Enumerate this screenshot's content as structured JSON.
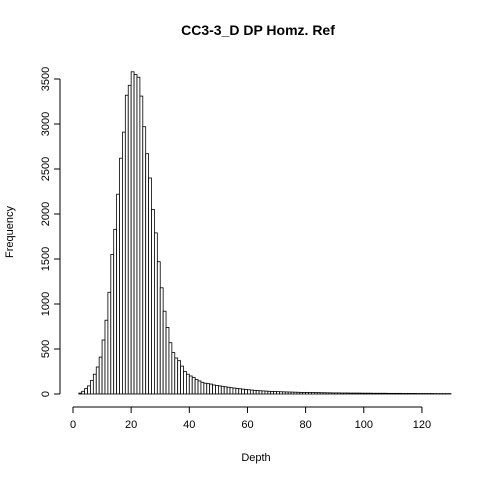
{
  "chart_data": {
    "type": "bar",
    "title": "CC3-3_D DP Homz. Ref",
    "xlabel": "Depth",
    "ylabel": "Frequency",
    "xlim": [
      0,
      130
    ],
    "ylim": [
      0,
      3600
    ],
    "x_ticks": [
      0,
      20,
      40,
      60,
      80,
      100,
      120
    ],
    "y_ticks": [
      0,
      500,
      1000,
      1500,
      2000,
      2500,
      3000,
      3500
    ],
    "bin_width": 1,
    "bin_start": 2,
    "values": [
      10,
      30,
      60,
      90,
      150,
      220,
      300,
      410,
      600,
      820,
      1130,
      1550,
      1830,
      2220,
      2620,
      2910,
      3320,
      3430,
      3580,
      3550,
      3520,
      3310,
      2970,
      2670,
      2400,
      2050,
      1790,
      1470,
      1180,
      920,
      740,
      570,
      460,
      400,
      370,
      310,
      250,
      220,
      200,
      185,
      160,
      145,
      130,
      120,
      115,
      110,
      100,
      95,
      90,
      85,
      80,
      75,
      70,
      66,
      62,
      58,
      54,
      50,
      47,
      44,
      41,
      38,
      36,
      34,
      32,
      30,
      28,
      27,
      26,
      25,
      24,
      23,
      22,
      21,
      20,
      19,
      18,
      18,
      17,
      16,
      16,
      15,
      15,
      14,
      14,
      13,
      13,
      12,
      12,
      12,
      11,
      11,
      11,
      10,
      10,
      10,
      10,
      9,
      9,
      9,
      9,
      8,
      8,
      8,
      8,
      8,
      7,
      7,
      7,
      7,
      7,
      6,
      6,
      6,
      6,
      6,
      5,
      5,
      5,
      5,
      5,
      5,
      4,
      4,
      4,
      4,
      4,
      4
    ],
    "grid": false,
    "legend": "none"
  }
}
